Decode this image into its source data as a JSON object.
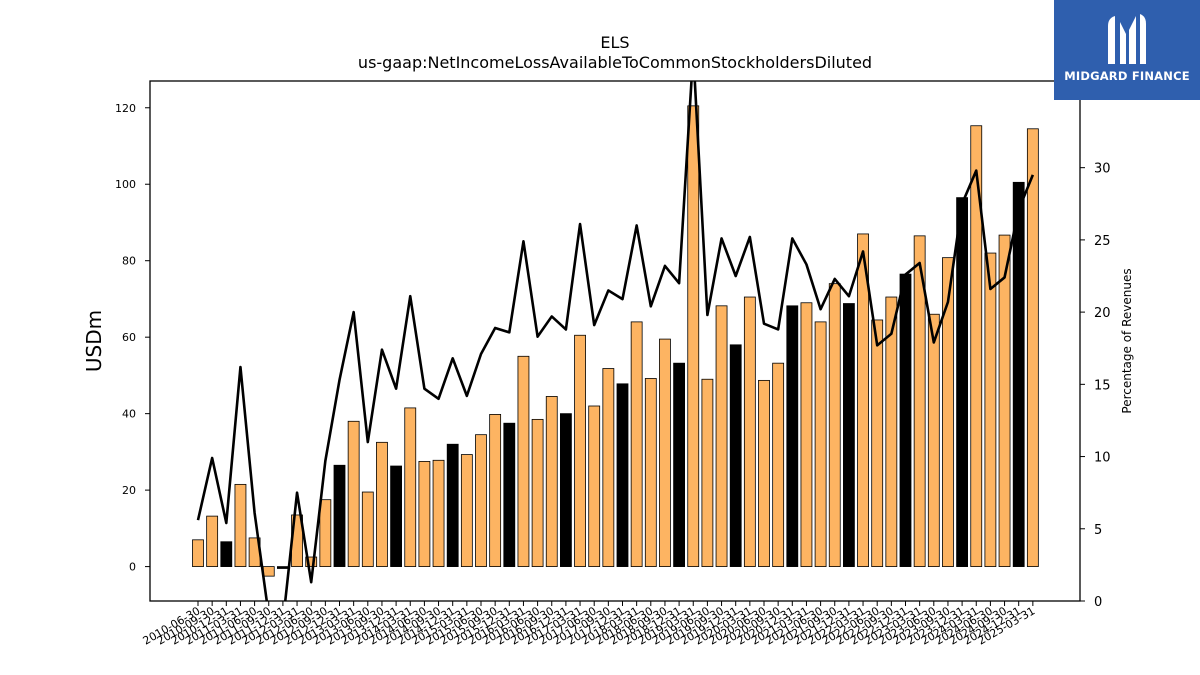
{
  "brand": {
    "name": "MIDGARD FINANCE",
    "logo_icon": "midgard-monogram-icon",
    "logo_color": "#2f5fae"
  },
  "chart_data": {
    "type": "bar",
    "title": "ELS",
    "subtitle": "us-gaap:NetIncomeLossAvailableToCommonStockholdersDiluted",
    "ylabel": "USDm",
    "y2label": "Percentage of Revenues",
    "ylim": [
      -9,
      127
    ],
    "y2lim": [
      0,
      36
    ],
    "yticks": [
      0,
      20,
      40,
      60,
      80,
      100,
      120
    ],
    "y2ticks": [
      0,
      5,
      10,
      15,
      20,
      25,
      30
    ],
    "grid": false,
    "colors": {
      "quarter": "#fdb462",
      "annual": "#000000",
      "line": "#000000"
    },
    "categories": [
      "2010-06-30",
      "2010-09-30",
      "2010-12-31",
      "2011-03-31",
      "2011-06-30",
      "2011-09-30",
      "2011-12-31",
      "2012-03-31",
      "2012-06-30",
      "2012-09-30",
      "2012-12-31",
      "2013-03-31",
      "2013-06-30",
      "2013-09-30",
      "2013-12-31",
      "2014-03-31",
      "2014-06-30",
      "2014-09-30",
      "2014-12-31",
      "2015-03-31",
      "2015-06-30",
      "2015-09-30",
      "2015-12-31",
      "2016-03-31",
      "2016-06-30",
      "2016-09-30",
      "2016-12-31",
      "2017-03-31",
      "2017-06-30",
      "2017-09-30",
      "2017-12-31",
      "2018-03-31",
      "2018-06-30",
      "2018-09-30",
      "2018-12-31",
      "2019-03-31",
      "2019-06-30",
      "2019-09-30",
      "2019-12-31",
      "2020-03-31",
      "2020-06-30",
      "2020-09-30",
      "2020-12-31",
      "2021-03-31",
      "2021-06-30",
      "2021-09-30",
      "2021-12-31",
      "2022-03-31",
      "2022-06-30",
      "2022-09-30",
      "2022-12-31",
      "2023-03-31",
      "2023-06-30",
      "2023-09-30",
      "2023-12-31",
      "2024-03-31",
      "2024-06-30",
      "2024-09-30",
      "2024-12-31",
      "2025-03-31"
    ],
    "series": [
      {
        "type": "bar",
        "values": [
          7,
          13.2,
          6.5,
          21.5,
          7.5,
          -2.5,
          -0.5,
          13.5,
          2.5,
          17.5,
          26.5,
          38,
          19.5,
          32.5,
          26.3,
          41.5,
          27.5,
          27.8,
          32,
          29.3,
          34.5,
          39.8,
          37.5,
          55,
          38.5,
          44.5,
          40,
          60.5,
          42,
          51.8,
          47.8,
          64,
          49.2,
          59.5,
          53.2,
          120.5,
          49,
          68.2,
          58,
          70.5,
          48.7,
          53.2,
          68.2,
          69,
          64,
          74,
          68.8,
          87,
          64.5,
          70.5,
          76.5,
          86.5,
          66,
          80.8,
          96.5,
          115.3,
          82,
          86.7,
          100.5,
          114.5
        ],
        "annual": [
          false,
          false,
          true,
          false,
          false,
          false,
          true,
          false,
          false,
          false,
          true,
          false,
          false,
          false,
          true,
          false,
          false,
          false,
          true,
          false,
          false,
          false,
          true,
          false,
          false,
          false,
          true,
          false,
          false,
          false,
          true,
          false,
          false,
          false,
          true,
          false,
          false,
          false,
          true,
          false,
          false,
          false,
          true,
          false,
          false,
          false,
          true,
          false,
          false,
          false,
          true,
          false,
          false,
          false,
          true,
          false,
          false,
          false,
          true,
          false
        ]
      },
      {
        "type": "line",
        "axis": "right",
        "values": [
          5.6,
          9.9,
          5.4,
          16.2,
          6.1,
          -1,
          -1.5,
          7.5,
          1.3,
          9.7,
          15.3,
          20,
          11,
          17.4,
          14.7,
          21.1,
          14.7,
          14,
          16.8,
          14.2,
          17.1,
          18.9,
          18.6,
          24.9,
          18.3,
          19.7,
          18.8,
          26.1,
          19.1,
          21.5,
          20.9,
          26,
          20.4,
          23.2,
          22,
          38,
          19.8,
          25.1,
          22.5,
          25.2,
          19.2,
          18.8,
          25.1,
          23.3,
          20.2,
          22.3,
          21.1,
          24.2,
          17.7,
          18.5,
          22.6,
          23.4,
          17.9,
          20.7,
          27.5,
          29.8,
          21.6,
          22.4,
          27.1,
          29.5
        ]
      }
    ]
  }
}
